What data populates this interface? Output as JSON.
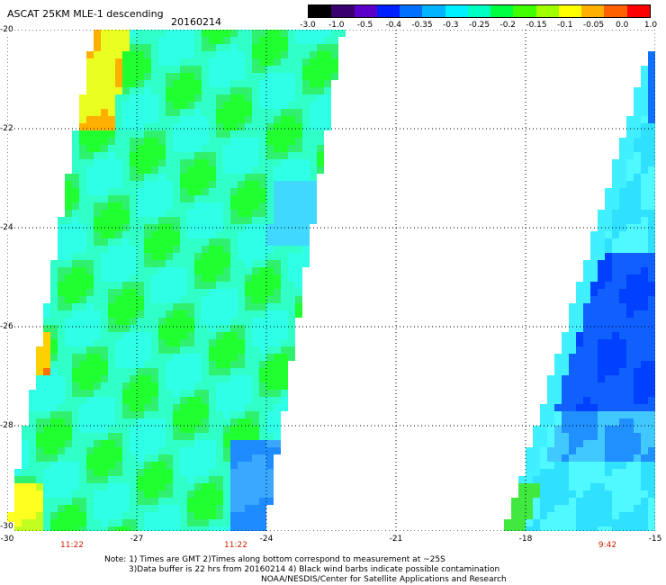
{
  "title": "ASCAT 25KM MLE-1 descending",
  "date": "20160214",
  "colorbar": {
    "labels": [
      "-3.0",
      "-1.0",
      "-0.5",
      "-0.4",
      "-0.35",
      "-0.3",
      "-0.25",
      "-0.2",
      "-0.15",
      "-0.1",
      "-0.05",
      "0.0",
      "1.0"
    ],
    "colors": [
      "#000000",
      "#3a0070",
      "#5a00c8",
      "#0020ff",
      "#0070ff",
      "#00b4ff",
      "#00f0ff",
      "#00ffc0",
      "#00ff40",
      "#40ff00",
      "#a0ff00",
      "#ffff00",
      "#ffb000",
      "#ff6000",
      "#ff0000"
    ]
  },
  "map": {
    "lat_labels": [
      "-20",
      "-22",
      "-24",
      "-26",
      "-28",
      "-30"
    ],
    "lon_labels": [
      "-30",
      "-27",
      "-24",
      "-21",
      "-18",
      "-15"
    ],
    "time_labels": [
      "11:22",
      "11:22",
      "9:42"
    ]
  },
  "notes": {
    "line1": "Note: 1) Times are GMT 2)Times along bottom correspond to measurement at ~25S",
    "line2": "3)Data buffer is 22 hrs from 20160214 4) Black wind barbs indicate possible contamination",
    "line3": "NOAA/NESDIS/Center for Satellite Applications and Research"
  }
}
